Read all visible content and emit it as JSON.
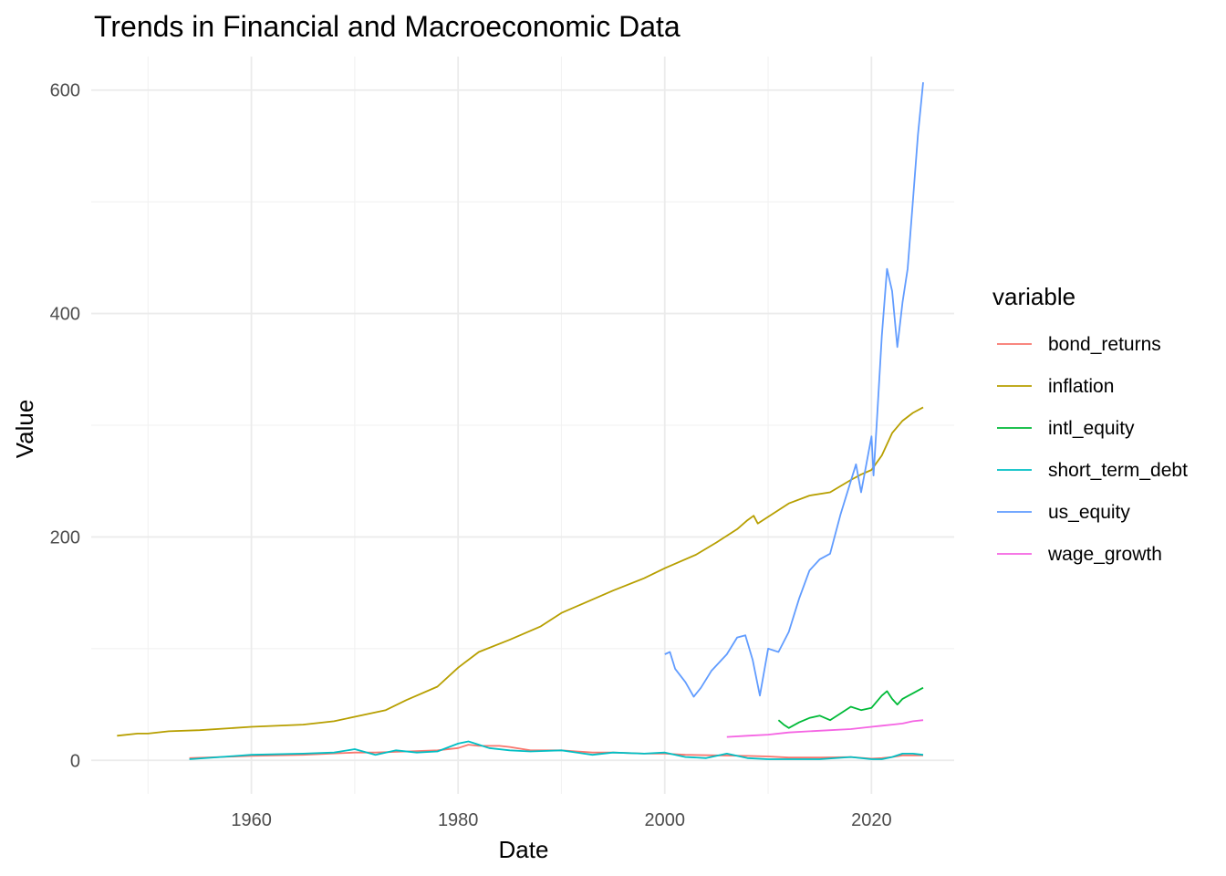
{
  "chart_data": {
    "type": "line",
    "title": "Trends in Financial and Macroeconomic Data",
    "xlabel": "Date",
    "ylabel": "Value",
    "x_ticks": [
      1960,
      1980,
      2000,
      2020
    ],
    "y_ticks": [
      0,
      200,
      400,
      600
    ],
    "xlim": [
      1944.5,
      2028
    ],
    "ylim": [
      -30,
      630
    ],
    "grid": true,
    "legend": {
      "title": "variable",
      "position": "right"
    },
    "series": [
      {
        "name": "bond_returns",
        "color": "#F8766D",
        "x": [
          1954,
          1960,
          1965,
          1970,
          1972,
          1975,
          1978,
          1980,
          1981,
          1982,
          1984,
          1985,
          1987,
          1990,
          1993,
          1995,
          1998,
          2000,
          2002,
          2005,
          2008,
          2010,
          2012,
          2015,
          2018,
          2020,
          2021,
          2022,
          2023,
          2024,
          2025
        ],
        "y": [
          2,
          4,
          5,
          7,
          7,
          8,
          9,
          11,
          14,
          13,
          13,
          12,
          9,
          9,
          7,
          7,
          6,
          6,
          5,
          4.5,
          4,
          3.5,
          2.5,
          2.5,
          3,
          1.5,
          2,
          3,
          4.5,
          4.5,
          4.5
        ]
      },
      {
        "name": "inflation",
        "color": "#B79F00",
        "x": [
          1947,
          1949,
          1950,
          1952,
          1955,
          1960,
          1965,
          1968,
          1970,
          1973,
          1975,
          1978,
          1980,
          1982,
          1985,
          1988,
          1990,
          1992,
          1995,
          1998,
          2000,
          2003,
          2005,
          2007,
          2008,
          2008.6,
          2009,
          2010,
          2012,
          2014,
          2016,
          2018,
          2019,
          2020,
          2021,
          2022,
          2023,
          2024,
          2025
        ],
        "y": [
          22,
          24,
          24,
          26,
          27,
          30,
          32,
          35,
          39,
          45,
          54,
          66,
          83,
          97,
          108,
          120,
          132,
          140,
          152,
          163,
          172,
          184,
          195,
          207,
          215,
          219,
          212,
          218,
          230,
          237,
          240,
          251,
          256,
          260,
          273,
          293,
          304,
          311,
          316
        ]
      },
      {
        "name": "intl_equity",
        "color": "#00BA38",
        "x": [
          2011,
          2011.5,
          2012,
          2013,
          2014,
          2015,
          2016,
          2017,
          2018,
          2019,
          2020,
          2021,
          2021.5,
          2022,
          2022.5,
          2023,
          2024,
          2025
        ],
        "y": [
          36,
          32,
          29,
          34,
          38,
          40,
          36,
          42,
          48,
          45,
          47,
          58,
          62,
          55,
          50,
          55,
          60,
          65
        ]
      },
      {
        "name": "short_term_debt",
        "color": "#00BFC4",
        "x": [
          1954,
          1957,
          1960,
          1965,
          1968,
          1970,
          1972,
          1974,
          1976,
          1978,
          1980,
          1981,
          1982,
          1983,
          1985,
          1987,
          1990,
          1993,
          1995,
          1998,
          2000,
          2002,
          2004,
          2006,
          2008,
          2010,
          2012,
          2015,
          2018,
          2020,
          2021,
          2022,
          2023,
          2024,
          2025
        ],
        "y": [
          1,
          3,
          5,
          6,
          7,
          10,
          5,
          9,
          7,
          8,
          15,
          17,
          14,
          11,
          9,
          8,
          9,
          5,
          7,
          6,
          7,
          3,
          2,
          6,
          2,
          1,
          1,
          1,
          3,
          1,
          1,
          3,
          6,
          6,
          5
        ]
      },
      {
        "name": "us_equity",
        "color": "#619CFF",
        "x": [
          2000,
          2000.5,
          2001,
          2002,
          2002.8,
          2003.5,
          2004.5,
          2006,
          2007,
          2007.8,
          2008.5,
          2009.2,
          2010,
          2011,
          2012,
          2013,
          2014,
          2015,
          2016,
          2017,
          2018,
          2018.5,
          2019,
          2020,
          2020.2,
          2020.5,
          2021,
          2021.5,
          2022,
          2022.5,
          2023,
          2023.5,
          2024,
          2024.5,
          2025
        ],
        "y": [
          95,
          97,
          82,
          70,
          57,
          65,
          80,
          95,
          110,
          112,
          90,
          58,
          100,
          97,
          115,
          145,
          170,
          180,
          185,
          220,
          250,
          265,
          240,
          290,
          255,
          300,
          380,
          440,
          420,
          370,
          410,
          440,
          500,
          560,
          607
        ]
      },
      {
        "name": "wage_growth",
        "color": "#F564E3",
        "x": [
          2006,
          2008,
          2010,
          2012,
          2014,
          2016,
          2018,
          2020,
          2021,
          2022,
          2023,
          2024,
          2025
        ],
        "y": [
          21,
          22,
          23,
          25,
          26,
          27,
          28,
          30,
          31,
          32,
          33,
          35,
          36
        ]
      }
    ]
  }
}
